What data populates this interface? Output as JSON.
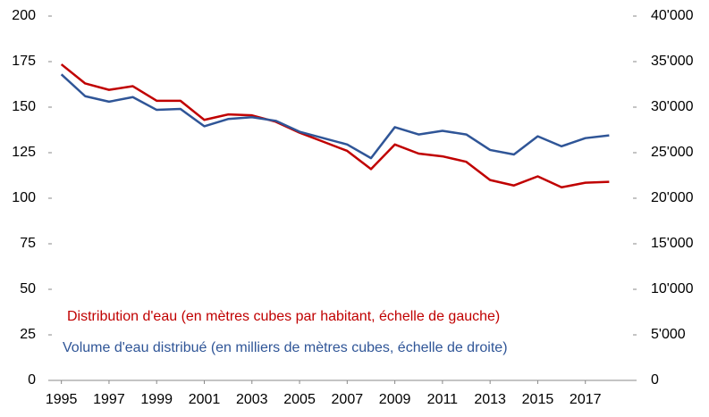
{
  "chart_data": {
    "type": "line",
    "x": [
      1995,
      1996,
      1997,
      1998,
      1999,
      2000,
      2001,
      2002,
      2003,
      2004,
      2005,
      2006,
      2007,
      2008,
      2009,
      2010,
      2011,
      2012,
      2013,
      2014,
      2015,
      2016,
      2017,
      2018
    ],
    "xlim": [
      1994.6,
      2019
    ],
    "xticks": [
      1995,
      1997,
      1999,
      2001,
      2003,
      2005,
      2007,
      2009,
      2011,
      2013,
      2015,
      2017
    ],
    "ylim": [
      0,
      200
    ],
    "yticks": [
      0,
      25,
      50,
      75,
      100,
      125,
      150,
      175,
      200
    ],
    "y2lim": [
      0,
      40000
    ],
    "y2ticks": [
      0,
      {
        "value": 5000,
        "label": "5'000"
      },
      {
        "value": 10000,
        "label": "10'000"
      },
      {
        "value": 15000,
        "label": "15'000"
      },
      {
        "value": 20000,
        "label": "20'000"
      },
      {
        "value": 25000,
        "label": "25'000"
      },
      {
        "value": 30000,
        "label": "30'000"
      },
      {
        "value": 35000,
        "label": "35'000"
      },
      {
        "value": 40000,
        "label": "40'000"
      }
    ],
    "grid": false,
    "series": [
      {
        "name": "Distribution d'eau (en mètres cubes par habitant, échelle de gauche)",
        "color": "#c00000",
        "values": [
          173.5,
          163,
          159.5,
          161.5,
          153.5,
          153.5,
          143,
          146,
          145.5,
          142,
          136,
          131,
          126,
          116,
          129.5,
          124.5,
          123,
          120,
          110,
          107,
          112,
          106,
          108.5,
          109
        ]
      },
      {
        "name": "Volume d'eau distribué (en milliers de mètres cubes, échelle de droite)",
        "color": "#2f5597",
        "axis": "y2",
        "values": [
          33600,
          31200,
          30600,
          31100,
          29700,
          29800,
          27900,
          28700,
          28900,
          28500,
          27300,
          26600,
          25900,
          24400,
          27800,
          27000,
          27400,
          27000,
          25300,
          24800,
          26800,
          25700,
          26600,
          26900
        ]
      }
    ]
  }
}
